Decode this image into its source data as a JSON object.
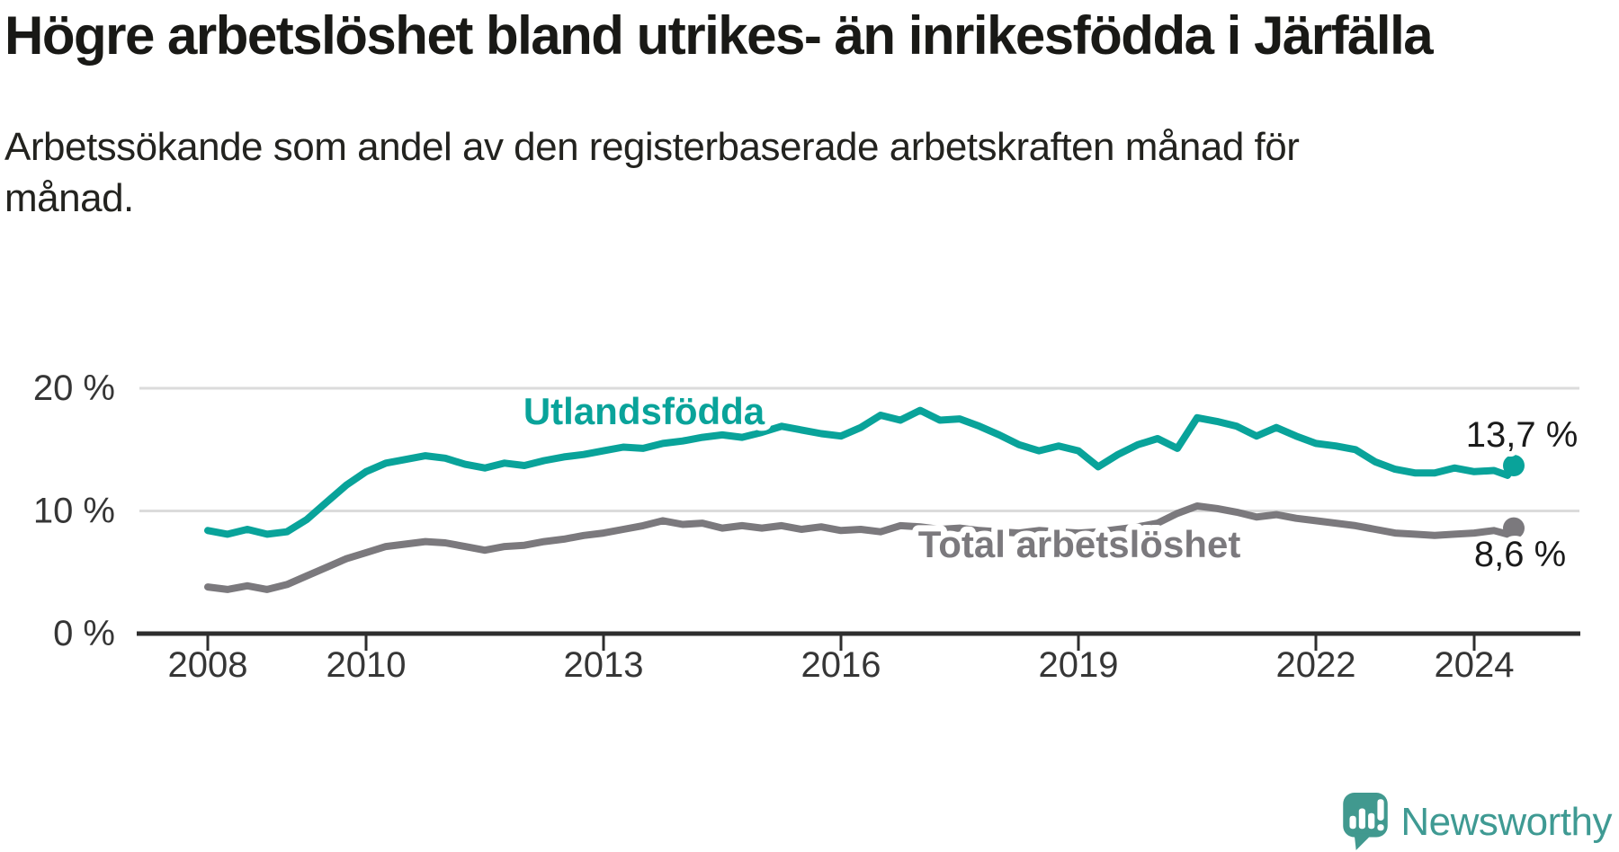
{
  "header": {
    "title": "Högre arbetslöshet bland utrikes- än inrikesfödda i Järfälla",
    "subtitle": "Arbetssökande som andel av den registerbaserade arbetskraften månad för månad."
  },
  "chart_data": {
    "type": "line",
    "unit": "%",
    "title": "Högre arbetslöshet bland utrikes- än inrikesfödda i Järfälla",
    "xlabel": "",
    "ylabel": "",
    "x_axis": {
      "ticks": [
        2008,
        2010,
        2013,
        2016,
        2019,
        2022,
        2024
      ],
      "range": [
        2007.15,
        2025.3
      ]
    },
    "y_axis": {
      "ticks": [
        {
          "value": 0,
          "label": "0 %"
        },
        {
          "value": 10,
          "label": "10 %"
        },
        {
          "value": 20,
          "label": "20 %"
        }
      ],
      "range": [
        0,
        21.5
      ],
      "grid": true
    },
    "legend_position": "inline-labels",
    "series": [
      {
        "name": "Utlandsfödda",
        "color": "#09a39a",
        "end_label": "13,7 %",
        "end_value": 13.7,
        "points": [
          [
            2008.0,
            8.4
          ],
          [
            2008.25,
            8.1
          ],
          [
            2008.5,
            8.5
          ],
          [
            2008.75,
            8.1
          ],
          [
            2009.0,
            8.3
          ],
          [
            2009.25,
            9.3
          ],
          [
            2009.5,
            10.7
          ],
          [
            2009.75,
            12.1
          ],
          [
            2010.0,
            13.2
          ],
          [
            2010.25,
            13.9
          ],
          [
            2010.5,
            14.2
          ],
          [
            2010.75,
            14.5
          ],
          [
            2011.0,
            14.3
          ],
          [
            2011.25,
            13.8
          ],
          [
            2011.5,
            13.5
          ],
          [
            2011.75,
            13.9
          ],
          [
            2012.0,
            13.7
          ],
          [
            2012.25,
            14.1
          ],
          [
            2012.5,
            14.4
          ],
          [
            2012.75,
            14.6
          ],
          [
            2013.0,
            14.9
          ],
          [
            2013.25,
            15.2
          ],
          [
            2013.5,
            15.1
          ],
          [
            2013.75,
            15.5
          ],
          [
            2014.0,
            15.7
          ],
          [
            2014.25,
            16.0
          ],
          [
            2014.5,
            16.2
          ],
          [
            2014.75,
            16.0
          ],
          [
            2015.0,
            16.4
          ],
          [
            2015.25,
            16.9
          ],
          [
            2015.5,
            16.6
          ],
          [
            2015.75,
            16.3
          ],
          [
            2016.0,
            16.1
          ],
          [
            2016.25,
            16.8
          ],
          [
            2016.5,
            17.8
          ],
          [
            2016.75,
            17.4
          ],
          [
            2017.0,
            18.2
          ],
          [
            2017.25,
            17.4
          ],
          [
            2017.5,
            17.5
          ],
          [
            2017.75,
            16.9
          ],
          [
            2018.0,
            16.2
          ],
          [
            2018.25,
            15.4
          ],
          [
            2018.5,
            14.9
          ],
          [
            2018.75,
            15.3
          ],
          [
            2019.0,
            14.9
          ],
          [
            2019.25,
            13.6
          ],
          [
            2019.5,
            14.6
          ],
          [
            2019.75,
            15.4
          ],
          [
            2020.0,
            15.9
          ],
          [
            2020.25,
            15.1
          ],
          [
            2020.5,
            17.6
          ],
          [
            2020.75,
            17.3
          ],
          [
            2021.0,
            16.9
          ],
          [
            2021.25,
            16.1
          ],
          [
            2021.5,
            16.8
          ],
          [
            2021.75,
            16.1
          ],
          [
            2022.0,
            15.5
          ],
          [
            2022.25,
            15.3
          ],
          [
            2022.5,
            15.0
          ],
          [
            2022.75,
            14.0
          ],
          [
            2023.0,
            13.4
          ],
          [
            2023.25,
            13.1
          ],
          [
            2023.5,
            13.1
          ],
          [
            2023.75,
            13.5
          ],
          [
            2024.0,
            13.2
          ],
          [
            2024.25,
            13.3
          ],
          [
            2024.42,
            12.9
          ],
          [
            2024.5,
            13.7
          ]
        ]
      },
      {
        "name": "Total arbetslöshet",
        "color": "#7b797d",
        "end_label": "8,6 %",
        "end_value": 8.6,
        "points": [
          [
            2008.0,
            3.8
          ],
          [
            2008.25,
            3.6
          ],
          [
            2008.5,
            3.9
          ],
          [
            2008.75,
            3.6
          ],
          [
            2009.0,
            4.0
          ],
          [
            2009.25,
            4.7
          ],
          [
            2009.5,
            5.4
          ],
          [
            2009.75,
            6.1
          ],
          [
            2010.0,
            6.6
          ],
          [
            2010.25,
            7.1
          ],
          [
            2010.5,
            7.3
          ],
          [
            2010.75,
            7.5
          ],
          [
            2011.0,
            7.4
          ],
          [
            2011.25,
            7.1
          ],
          [
            2011.5,
            6.8
          ],
          [
            2011.75,
            7.1
          ],
          [
            2012.0,
            7.2
          ],
          [
            2012.25,
            7.5
          ],
          [
            2012.5,
            7.7
          ],
          [
            2012.75,
            8.0
          ],
          [
            2013.0,
            8.2
          ],
          [
            2013.25,
            8.5
          ],
          [
            2013.5,
            8.8
          ],
          [
            2013.75,
            9.2
          ],
          [
            2014.0,
            8.9
          ],
          [
            2014.25,
            9.0
          ],
          [
            2014.5,
            8.6
          ],
          [
            2014.75,
            8.8
          ],
          [
            2015.0,
            8.6
          ],
          [
            2015.25,
            8.8
          ],
          [
            2015.5,
            8.5
          ],
          [
            2015.75,
            8.7
          ],
          [
            2016.0,
            8.4
          ],
          [
            2016.25,
            8.5
          ],
          [
            2016.5,
            8.3
          ],
          [
            2016.75,
            8.8
          ],
          [
            2017.0,
            8.7
          ],
          [
            2017.25,
            8.5
          ],
          [
            2017.5,
            8.6
          ],
          [
            2017.75,
            8.4
          ],
          [
            2018.0,
            8.3
          ],
          [
            2018.25,
            8.2
          ],
          [
            2018.5,
            8.4
          ],
          [
            2018.75,
            8.3
          ],
          [
            2019.0,
            8.2
          ],
          [
            2019.25,
            8.3
          ],
          [
            2019.5,
            8.5
          ],
          [
            2019.75,
            8.7
          ],
          [
            2020.0,
            9.0
          ],
          [
            2020.25,
            9.8
          ],
          [
            2020.5,
            10.4
          ],
          [
            2020.75,
            10.2
          ],
          [
            2021.0,
            9.9
          ],
          [
            2021.25,
            9.5
          ],
          [
            2021.5,
            9.7
          ],
          [
            2021.75,
            9.4
          ],
          [
            2022.0,
            9.2
          ],
          [
            2022.25,
            9.0
          ],
          [
            2022.5,
            8.8
          ],
          [
            2022.75,
            8.5
          ],
          [
            2023.0,
            8.2
          ],
          [
            2023.25,
            8.1
          ],
          [
            2023.5,
            8.0
          ],
          [
            2023.75,
            8.1
          ],
          [
            2024.0,
            8.2
          ],
          [
            2024.25,
            8.4
          ],
          [
            2024.42,
            8.1
          ],
          [
            2024.5,
            8.6
          ]
        ]
      }
    ]
  },
  "branding": {
    "logo_text": "Newsworthy",
    "logo_color": "#41998f",
    "text_color": "#3f9a93"
  }
}
